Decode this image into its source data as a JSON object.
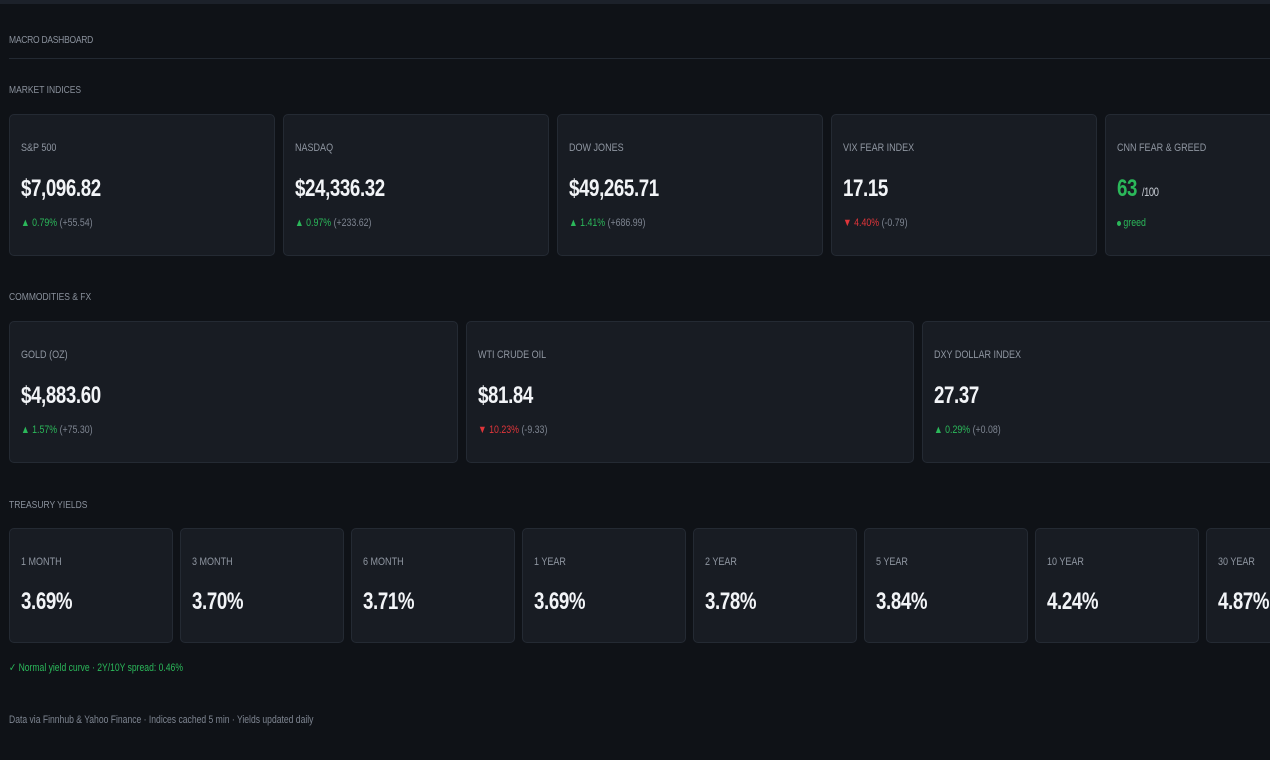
{
  "page_title": "MACRO DASHBOARD",
  "sections": {
    "indices": "MARKET INDICES",
    "commodities": "COMMODITIES & FX",
    "treasury": "TREASURY YIELDS"
  },
  "indices": [
    {
      "label": "S&P 500",
      "value": "$7,096.82",
      "arrow": "▲",
      "pct": "0.79%",
      "abs": "(+55.54)",
      "dir": "up"
    },
    {
      "label": "NASDAQ",
      "value": "$24,336.32",
      "arrow": "▲",
      "pct": "0.97%",
      "abs": "(+233.62)",
      "dir": "up"
    },
    {
      "label": "DOW JONES",
      "value": "$49,265.71",
      "arrow": "▲",
      "pct": "1.41%",
      "abs": "(+686.99)",
      "dir": "up"
    },
    {
      "label": "VIX FEAR INDEX",
      "value": "17.15",
      "arrow": "▼",
      "pct": "4.40%",
      "abs": "(-0.79)",
      "dir": "down"
    }
  ],
  "fear_greed": {
    "label": "CNN FEAR & GREED",
    "value": "63",
    "suffix": "/100",
    "status": "greed"
  },
  "commodities": [
    {
      "label": "GOLD (OZ)",
      "value": "$4,883.60",
      "arrow": "▲",
      "pct": "1.57%",
      "abs": "(+75.30)",
      "dir": "up"
    },
    {
      "label": "WTI CRUDE OIL",
      "value": "$81.84",
      "arrow": "▼",
      "pct": "10.23%",
      "abs": "(-9.33)",
      "dir": "down"
    },
    {
      "label": "DXY DOLLAR INDEX",
      "value": "27.37",
      "arrow": "▲",
      "pct": "0.29%",
      "abs": "(+0.08)",
      "dir": "up"
    }
  ],
  "yields": [
    {
      "label": "1 MONTH",
      "value": "3.69%"
    },
    {
      "label": "3 MONTH",
      "value": "3.70%"
    },
    {
      "label": "6 MONTH",
      "value": "3.71%"
    },
    {
      "label": "1 YEAR",
      "value": "3.69%"
    },
    {
      "label": "2 YEAR",
      "value": "3.78%"
    },
    {
      "label": "5 YEAR",
      "value": "3.84%"
    },
    {
      "label": "10 YEAR",
      "value": "4.24%"
    },
    {
      "label": "30 YEAR",
      "value": "4.87%"
    }
  ],
  "curve_note": "✓ Normal yield curve · 2Y/10Y spread: 0.46%",
  "footer_note": "Data via Finnhub & Yahoo Finance · Indices cached 5 min · Yields updated daily",
  "colors": {
    "up": "#2bb85a",
    "down": "#e0353a",
    "background": "#0f1217",
    "card": "#181c23"
  }
}
